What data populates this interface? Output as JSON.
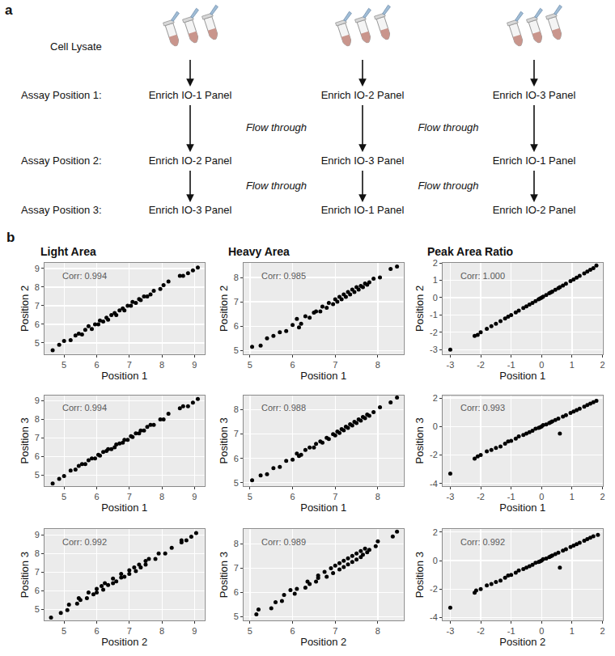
{
  "panel_a": {
    "label": "a",
    "lysate_label": "Cell Lysate",
    "rows": [
      "Assay Position 1:",
      "Assay Position 2:",
      "Assay Position 3:"
    ],
    "columns": [
      [
        "Enrich IO-1 Panel",
        "Enrich IO-2 Panel",
        "Enrich IO-3 Panel"
      ],
      [
        "Enrich IO-2 Panel",
        "Enrich IO-3 Panel",
        "Enrich IO-1 Panel"
      ],
      [
        "Enrich IO-3 Panel",
        "Enrich IO-1 Panel",
        "Enrich IO-2 Panel"
      ]
    ],
    "flow_through": [
      "Flow through",
      "Flow through",
      "Flow through",
      "Flow through"
    ]
  },
  "panel_b": {
    "label": "b",
    "column_titles": [
      "Light Area",
      "Heavy Area",
      "Peak Area Ratio"
    ]
  },
  "chart_data": [
    {
      "type": "scatter",
      "xlabel": "Position 1",
      "ylabel": "Position 2",
      "annotations": [
        "Corr: 0.994"
      ],
      "x": [
        4.65,
        4.85,
        5.0,
        5.2,
        5.35,
        5.45,
        5.55,
        5.65,
        5.75,
        5.85,
        5.95,
        6.05,
        6.1,
        6.2,
        6.3,
        6.35,
        6.45,
        6.55,
        6.6,
        6.7,
        6.8,
        6.85,
        6.95,
        7.05,
        7.1,
        7.2,
        7.3,
        7.35,
        7.45,
        7.55,
        7.65,
        7.75,
        7.95,
        8.05,
        8.2,
        8.55,
        8.65,
        8.8,
        8.95,
        9.1
      ],
      "values": [
        4.6,
        4.9,
        5.1,
        5.15,
        5.4,
        5.5,
        5.45,
        5.7,
        5.9,
        5.75,
        6.0,
        6.0,
        6.2,
        6.15,
        6.35,
        6.25,
        6.5,
        6.6,
        6.5,
        6.75,
        6.85,
        6.75,
        7.0,
        7.0,
        7.2,
        7.15,
        7.35,
        7.3,
        7.5,
        7.5,
        7.6,
        7.8,
        7.9,
        8.1,
        8.3,
        8.6,
        8.6,
        8.75,
        8.9,
        9.05
      ],
      "xlim": [
        4.4,
        9.3
      ],
      "ylim": [
        4.4,
        9.3
      ],
      "xticks": [
        5,
        6,
        7,
        8,
        9
      ],
      "yticks": [
        5,
        6,
        7,
        8,
        9
      ],
      "grid": true,
      "color": "#000000",
      "marker": "circle"
    },
    {
      "type": "scatter",
      "xlabel": "Position 1",
      "ylabel": "Position 2",
      "annotations": [
        "Corr: 0.985"
      ],
      "x": [
        5.05,
        5.25,
        5.4,
        5.55,
        5.7,
        5.85,
        6.0,
        6.1,
        6.2,
        6.3,
        6.4,
        6.5,
        6.55,
        6.65,
        6.7,
        6.8,
        6.85,
        6.95,
        7.0,
        7.05,
        7.1,
        7.15,
        7.2,
        7.25,
        7.3,
        7.35,
        7.4,
        7.45,
        7.5,
        7.55,
        7.6,
        7.65,
        7.7,
        7.75,
        7.8,
        7.9,
        8.05,
        8.3,
        8.45,
        6.15
      ],
      "values": [
        5.15,
        5.2,
        5.5,
        5.6,
        5.75,
        5.8,
        6.05,
        6.3,
        6.1,
        6.4,
        6.35,
        6.55,
        6.6,
        6.6,
        6.8,
        6.75,
        6.95,
        6.9,
        7.1,
        7.0,
        7.2,
        7.1,
        7.3,
        7.2,
        7.4,
        7.3,
        7.5,
        7.4,
        7.6,
        7.5,
        7.65,
        7.6,
        7.75,
        7.7,
        7.8,
        7.95,
        8.0,
        8.35,
        8.45,
        5.95
      ],
      "xlim": [
        4.85,
        8.6
      ],
      "ylim": [
        4.85,
        8.6
      ],
      "xticks": [
        5,
        6,
        7,
        8
      ],
      "yticks": [
        5,
        6,
        7,
        8
      ],
      "grid": true,
      "color": "#000000",
      "marker": "circle"
    },
    {
      "type": "scatter",
      "xlabel": "Position 1",
      "ylabel": "Position 2",
      "annotations": [
        "Corr: 1.000"
      ],
      "x": [
        -3.0,
        -2.2,
        -2.1,
        -2.0,
        -1.8,
        -1.65,
        -1.5,
        -1.35,
        -1.2,
        -1.1,
        -1.0,
        -0.85,
        -0.75,
        -0.6,
        -0.5,
        -0.4,
        -0.3,
        -0.2,
        -0.1,
        0.0,
        0.05,
        0.15,
        0.25,
        0.35,
        0.45,
        0.55,
        0.6,
        0.7,
        0.8,
        0.95,
        1.05,
        1.15,
        1.25,
        1.4,
        1.5,
        1.6,
        1.7,
        1.8,
        -0.05,
        0.3
      ],
      "values": [
        -3.0,
        -2.2,
        -2.15,
        -2.0,
        -1.8,
        -1.65,
        -1.5,
        -1.35,
        -1.2,
        -1.1,
        -1.0,
        -0.85,
        -0.75,
        -0.6,
        -0.5,
        -0.4,
        -0.3,
        -0.2,
        -0.1,
        0.0,
        0.05,
        0.15,
        0.25,
        0.35,
        0.45,
        0.55,
        0.6,
        0.7,
        0.8,
        0.95,
        1.05,
        1.15,
        1.25,
        1.4,
        1.5,
        1.6,
        1.7,
        1.85,
        -0.05,
        0.3
      ],
      "xlim": [
        -3.25,
        2.0
      ],
      "ylim": [
        -3.25,
        2.0
      ],
      "xticks": [
        -3,
        -2,
        -1,
        0,
        1,
        2
      ],
      "yticks": [
        -3,
        -2,
        -1,
        0,
        1,
        2
      ],
      "grid": true,
      "color": "#000000",
      "marker": "circle"
    },
    {
      "type": "scatter",
      "xlabel": "Position 1",
      "ylabel": "Position 3",
      "annotations": [
        "Corr: 0.994"
      ],
      "x": [
        4.65,
        4.85,
        5.0,
        5.2,
        5.35,
        5.45,
        5.55,
        5.65,
        5.75,
        5.85,
        5.95,
        6.05,
        6.1,
        6.2,
        6.3,
        6.35,
        6.45,
        6.55,
        6.6,
        6.7,
        6.8,
        6.85,
        6.95,
        7.05,
        7.1,
        7.2,
        7.3,
        7.35,
        7.45,
        7.55,
        7.65,
        7.75,
        7.95,
        8.05,
        8.2,
        8.55,
        8.65,
        8.8,
        8.95,
        9.1
      ],
      "values": [
        4.55,
        4.8,
        4.95,
        5.25,
        5.3,
        5.5,
        5.6,
        5.6,
        5.8,
        5.9,
        5.9,
        6.1,
        6.05,
        6.25,
        6.3,
        6.4,
        6.4,
        6.5,
        6.65,
        6.7,
        6.75,
        6.9,
        6.9,
        7.1,
        7.05,
        7.25,
        7.25,
        7.4,
        7.4,
        7.6,
        7.7,
        7.7,
        8.0,
        8.0,
        8.3,
        8.6,
        8.7,
        8.7,
        8.9,
        9.1
      ],
      "xlim": [
        4.4,
        9.3
      ],
      "ylim": [
        4.4,
        9.3
      ],
      "xticks": [
        5,
        6,
        7,
        8,
        9
      ],
      "yticks": [
        5,
        6,
        7,
        8,
        9
      ],
      "grid": true,
      "color": "#000000",
      "marker": "circle"
    },
    {
      "type": "scatter",
      "xlabel": "Position 1",
      "ylabel": "Position 3",
      "annotations": [
        "Corr: 0.988"
      ],
      "x": [
        5.05,
        5.25,
        5.4,
        5.55,
        5.7,
        5.85,
        6.0,
        6.1,
        6.2,
        6.3,
        6.4,
        6.5,
        6.55,
        6.65,
        6.7,
        6.8,
        6.85,
        6.95,
        7.0,
        7.05,
        7.1,
        7.15,
        7.2,
        7.25,
        7.3,
        7.35,
        7.4,
        7.45,
        7.5,
        7.55,
        7.6,
        7.65,
        7.7,
        7.75,
        7.8,
        7.9,
        8.05,
        8.3,
        8.45,
        6.15
      ],
      "values": [
        5.1,
        5.3,
        5.35,
        5.6,
        5.65,
        5.9,
        5.95,
        6.2,
        6.15,
        6.35,
        6.45,
        6.45,
        6.6,
        6.7,
        6.65,
        6.85,
        6.8,
        7.0,
        6.95,
        7.1,
        7.05,
        7.2,
        7.15,
        7.3,
        7.25,
        7.4,
        7.35,
        7.5,
        7.45,
        7.6,
        7.55,
        7.7,
        7.65,
        7.8,
        7.75,
        7.9,
        8.1,
        8.3,
        8.5,
        6.1
      ],
      "xlim": [
        4.85,
        8.6
      ],
      "ylim": [
        4.85,
        8.6
      ],
      "xticks": [
        5,
        6,
        7,
        8
      ],
      "yticks": [
        5,
        6,
        7,
        8
      ],
      "grid": true,
      "color": "#000000",
      "marker": "circle"
    },
    {
      "type": "scatter",
      "xlabel": "Position 1",
      "ylabel": "Position 3",
      "annotations": [
        "Corr: 0.993"
      ],
      "x": [
        -3.0,
        -2.2,
        -2.1,
        -2.0,
        -1.8,
        -1.65,
        -1.5,
        -1.35,
        -1.2,
        -1.1,
        -1.0,
        -0.85,
        -0.75,
        -0.6,
        -0.5,
        -0.4,
        -0.3,
        -0.2,
        -0.1,
        0.0,
        0.05,
        0.15,
        0.25,
        0.35,
        0.45,
        0.55,
        0.6,
        0.7,
        0.8,
        0.95,
        1.05,
        1.15,
        1.25,
        1.4,
        1.5,
        1.6,
        1.7,
        1.8,
        -0.05,
        0.3
      ],
      "values": [
        -3.3,
        -2.25,
        -2.1,
        -2.0,
        -1.75,
        -1.65,
        -1.5,
        -1.4,
        -1.2,
        -1.05,
        -1.0,
        -0.85,
        -0.7,
        -0.6,
        -0.5,
        -0.4,
        -0.3,
        -0.15,
        -0.1,
        0.0,
        0.1,
        0.15,
        0.25,
        0.35,
        0.45,
        0.55,
        -0.5,
        0.7,
        0.8,
        0.95,
        1.05,
        1.15,
        1.25,
        1.4,
        1.5,
        1.6,
        1.7,
        1.8,
        -0.05,
        0.3
      ],
      "xlim": [
        -3.25,
        2.0
      ],
      "ylim": [
        -4.2,
        2.2
      ],
      "xticks": [
        -3,
        -2,
        -1,
        0,
        1,
        2
      ],
      "yticks": [
        -4,
        -2,
        0,
        2
      ],
      "grid": true,
      "color": "#000000",
      "marker": "circle"
    },
    {
      "type": "scatter",
      "xlabel": "Position 2",
      "ylabel": "Position 3",
      "annotations": [
        "Corr: 0.992"
      ],
      "x": [
        4.6,
        4.9,
        5.1,
        5.15,
        5.4,
        5.5,
        5.45,
        5.7,
        5.9,
        5.75,
        6.0,
        6.0,
        6.2,
        6.15,
        6.35,
        6.25,
        6.5,
        6.6,
        6.5,
        6.75,
        6.85,
        6.75,
        7.0,
        7.0,
        7.2,
        7.15,
        7.35,
        7.3,
        7.5,
        7.5,
        7.6,
        7.8,
        7.9,
        8.1,
        8.3,
        8.6,
        8.6,
        8.75,
        8.9,
        9.05
      ],
      "values": [
        4.55,
        4.8,
        4.95,
        5.25,
        5.3,
        5.5,
        5.6,
        5.6,
        5.8,
        5.9,
        5.9,
        6.1,
        6.05,
        6.25,
        6.3,
        6.4,
        6.4,
        6.5,
        6.65,
        6.7,
        6.75,
        6.9,
        6.9,
        7.1,
        7.05,
        7.25,
        7.25,
        7.4,
        7.4,
        7.6,
        7.7,
        7.7,
        8.0,
        8.0,
        8.3,
        8.6,
        8.7,
        8.7,
        8.9,
        9.1
      ],
      "xlim": [
        4.4,
        9.3
      ],
      "ylim": [
        4.4,
        9.3
      ],
      "xticks": [
        5,
        6,
        7,
        8,
        9
      ],
      "yticks": [
        5,
        6,
        7,
        8,
        9
      ],
      "grid": true,
      "color": "#000000",
      "marker": "circle"
    },
    {
      "type": "scatter",
      "xlabel": "Position 2",
      "ylabel": "Position 3",
      "annotations": [
        "Corr: 0.989"
      ],
      "x": [
        5.15,
        5.2,
        5.5,
        5.6,
        5.75,
        5.8,
        6.05,
        6.3,
        6.1,
        6.4,
        6.35,
        6.55,
        6.6,
        6.6,
        6.8,
        6.75,
        6.95,
        6.9,
        7.1,
        7.0,
        7.2,
        7.1,
        7.3,
        7.2,
        7.4,
        7.3,
        7.5,
        7.4,
        7.6,
        7.5,
        7.65,
        7.6,
        7.75,
        7.7,
        7.8,
        7.95,
        8.0,
        8.35,
        8.45,
        5.95
      ],
      "values": [
        5.1,
        5.3,
        5.35,
        5.6,
        5.65,
        5.9,
        5.95,
        6.2,
        6.15,
        6.35,
        6.45,
        6.45,
        6.6,
        6.7,
        6.65,
        6.85,
        6.8,
        7.0,
        6.95,
        7.1,
        7.05,
        7.2,
        7.15,
        7.3,
        7.25,
        7.4,
        7.35,
        7.5,
        7.45,
        7.6,
        7.55,
        7.7,
        7.65,
        7.8,
        7.75,
        7.9,
        8.1,
        8.3,
        8.5,
        6.1
      ],
      "xlim": [
        4.85,
        8.6
      ],
      "ylim": [
        4.85,
        8.6
      ],
      "xticks": [
        5,
        6,
        7,
        8
      ],
      "yticks": [
        5,
        6,
        7,
        8
      ],
      "grid": true,
      "color": "#000000",
      "marker": "circle"
    },
    {
      "type": "scatter",
      "xlabel": "Position 2",
      "ylabel": "Position 3",
      "annotations": [
        "Corr: 0.992"
      ],
      "x": [
        -3.0,
        -2.2,
        -2.15,
        -2.0,
        -1.8,
        -1.65,
        -1.5,
        -1.35,
        -1.2,
        -1.1,
        -1.0,
        -0.85,
        -0.75,
        -0.6,
        -0.5,
        -0.4,
        -0.3,
        -0.2,
        -0.1,
        0.0,
        0.05,
        0.15,
        0.25,
        0.35,
        0.45,
        0.55,
        0.6,
        0.7,
        0.8,
        0.95,
        1.05,
        1.15,
        1.25,
        1.4,
        1.5,
        1.6,
        1.7,
        1.85,
        -0.05,
        0.3
      ],
      "values": [
        -3.3,
        -2.25,
        -2.1,
        -2.0,
        -1.75,
        -1.65,
        -1.5,
        -1.4,
        -1.2,
        -1.05,
        -1.0,
        -0.85,
        -0.7,
        -0.6,
        -0.5,
        -0.4,
        -0.3,
        -0.15,
        -0.1,
        0.0,
        0.1,
        0.15,
        0.25,
        0.35,
        0.45,
        0.55,
        -0.5,
        0.7,
        0.8,
        0.95,
        1.05,
        1.15,
        1.25,
        1.4,
        1.5,
        1.6,
        1.7,
        1.8,
        -0.05,
        0.3
      ],
      "xlim": [
        -3.25,
        2.0
      ],
      "ylim": [
        -4.2,
        2.2
      ],
      "xticks": [
        -3,
        -2,
        -1,
        0,
        1,
        2
      ],
      "yticks": [
        -4,
        -2,
        0,
        2
      ],
      "grid": true,
      "color": "#000000",
      "marker": "circle"
    }
  ]
}
